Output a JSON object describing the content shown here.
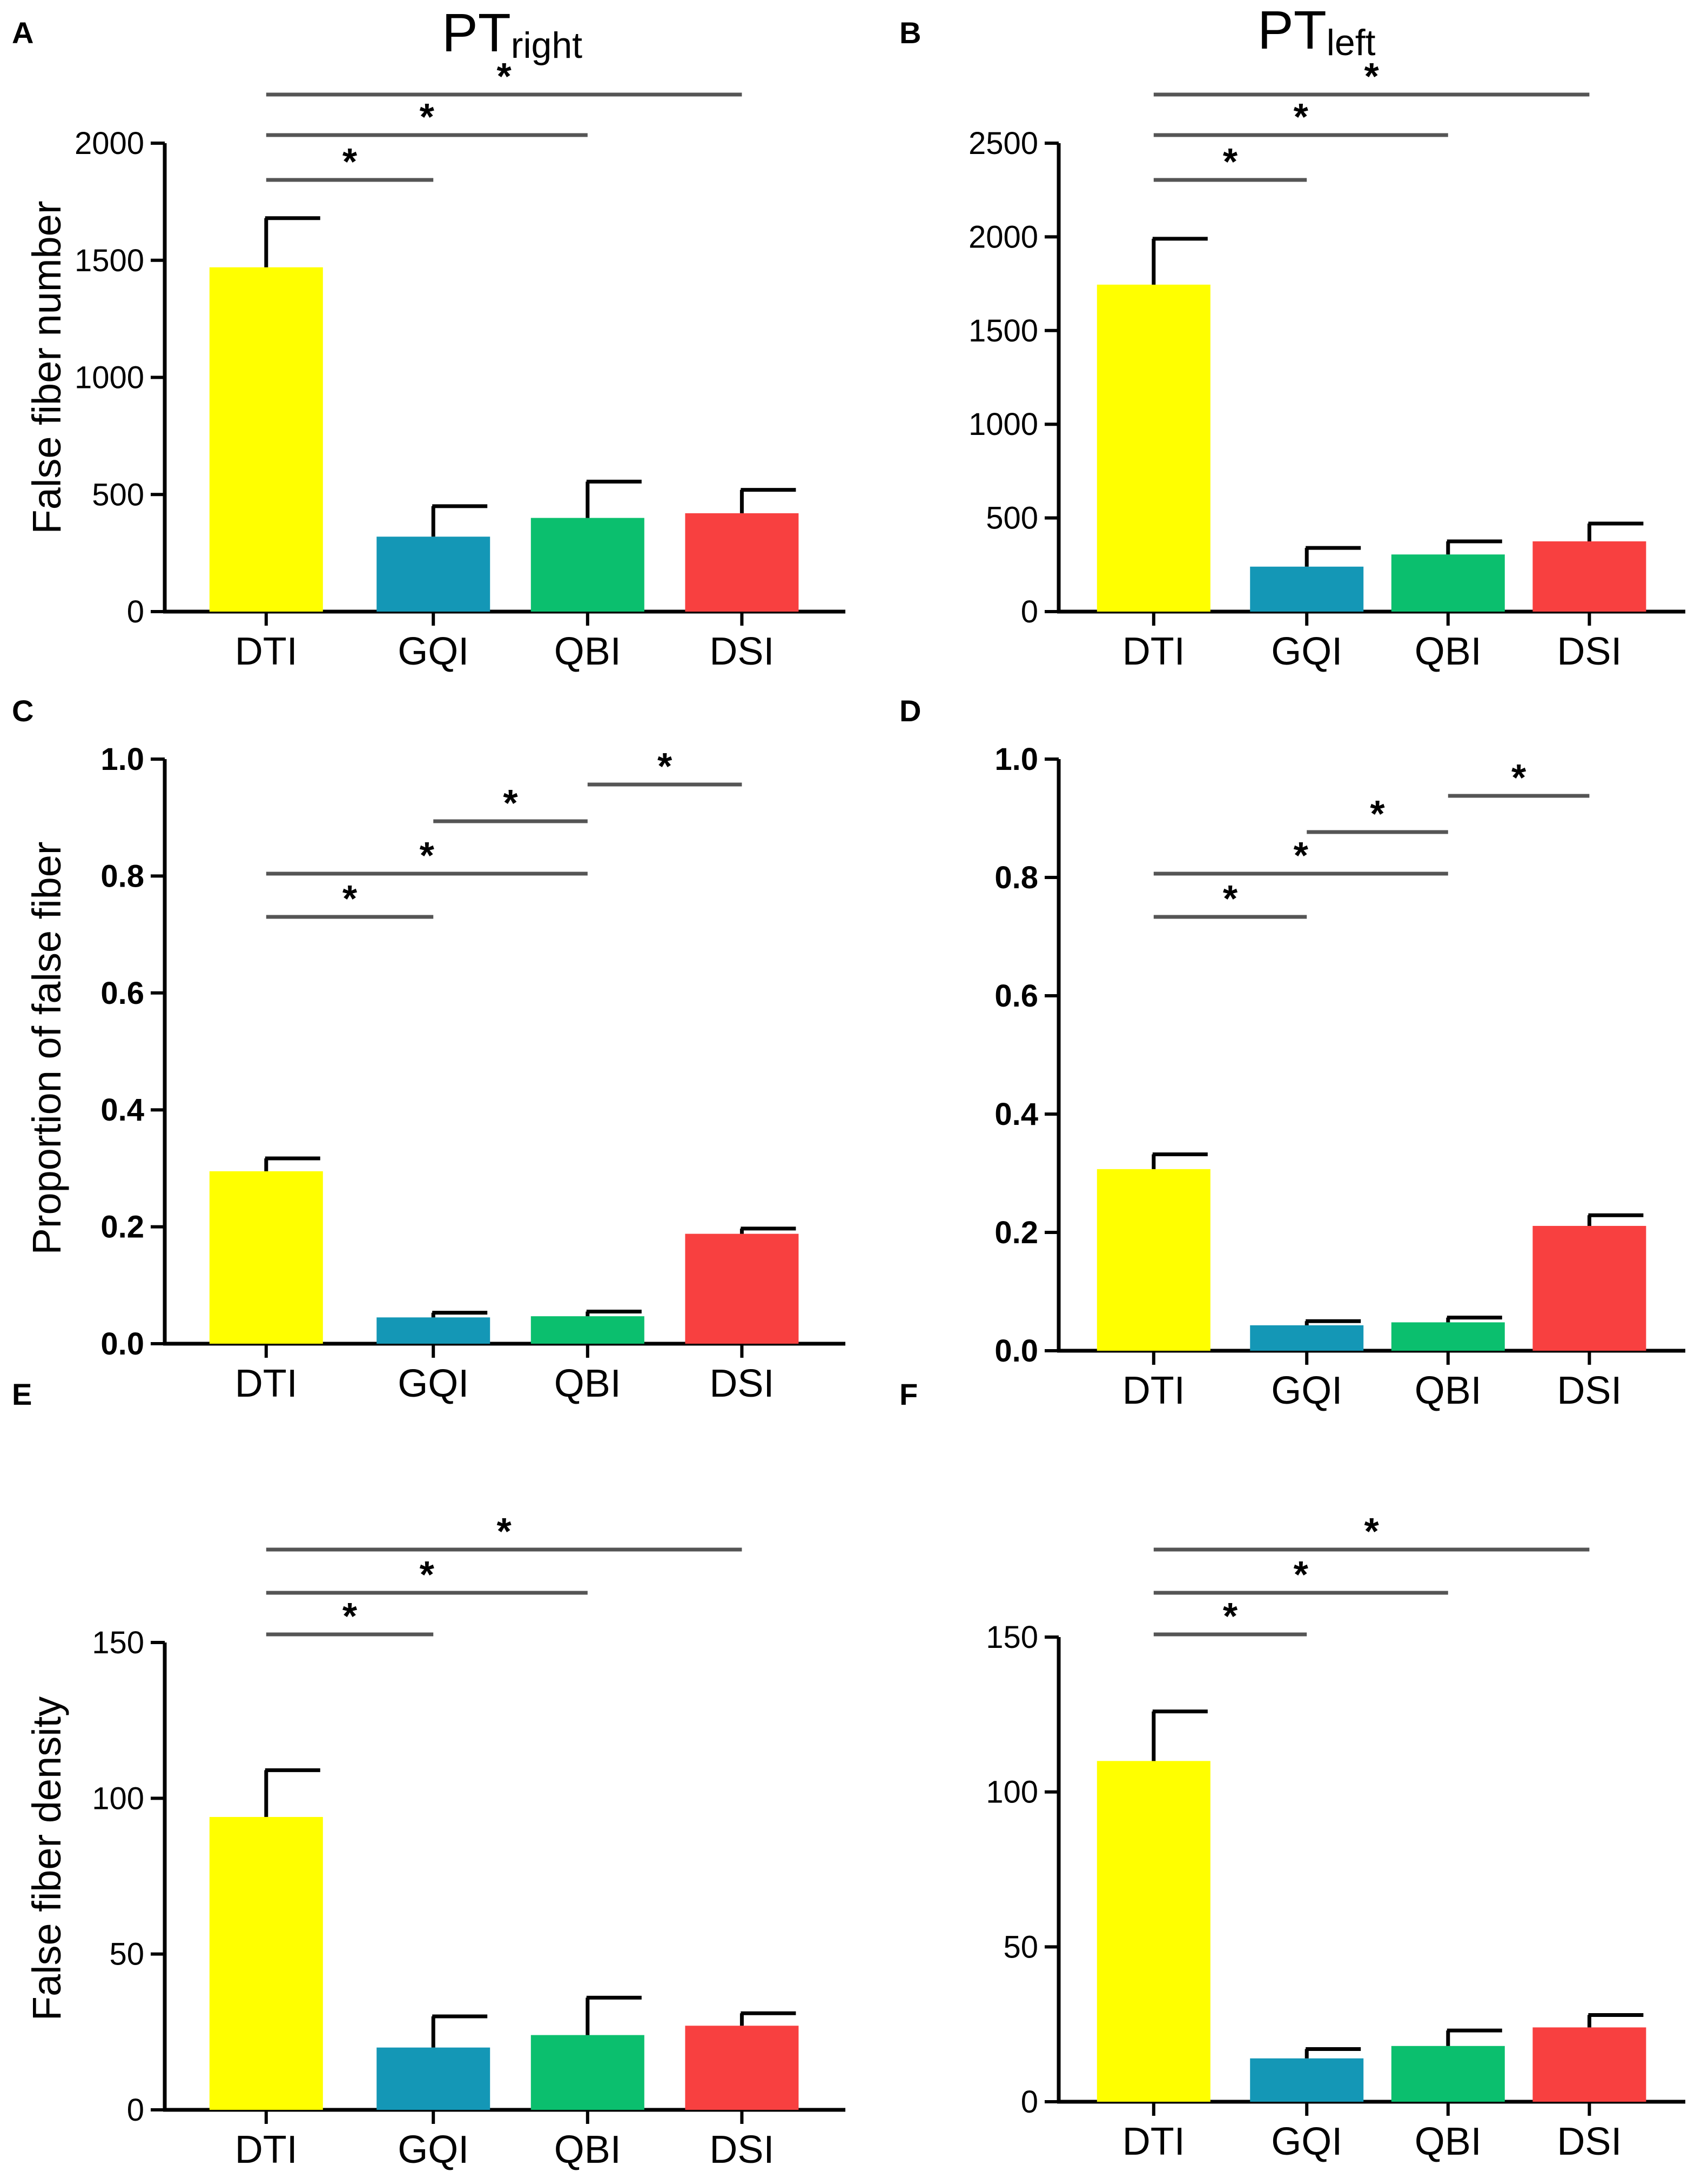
{
  "figure": {
    "title_right": {
      "main": "PT",
      "sub": "right"
    },
    "title_left": {
      "main": "PT",
      "sub": "left"
    }
  },
  "colors": {
    "DTI": "#ffff00",
    "GQI": "#1497b6",
    "QBI": "#0bbf6e",
    "DSI": "#f84040",
    "axis": "#000000",
    "bracket": "#555555"
  },
  "chart_data": [
    {
      "panel": "A",
      "type": "bar",
      "title": "PTright",
      "categories": [
        "DTI",
        "GQI",
        "QBI",
        "DSI"
      ],
      "values": [
        1470,
        320,
        400,
        420
      ],
      "errors": [
        210,
        130,
        155,
        100
      ],
      "ylabel": "False fiber number",
      "ylim": [
        0,
        2000
      ],
      "yticks": [
        0,
        500,
        1000,
        1500,
        2000
      ],
      "significance": [
        {
          "from": "DTI",
          "to": "GQI",
          "label": "*"
        },
        {
          "from": "DTI",
          "to": "QBI",
          "label": "*"
        },
        {
          "from": "DTI",
          "to": "DSI",
          "label": "*"
        }
      ]
    },
    {
      "panel": "B",
      "type": "bar",
      "title": "PTleft",
      "categories": [
        "DTI",
        "GQI",
        "QBI",
        "DSI"
      ],
      "values": [
        1745,
        240,
        305,
        375
      ],
      "errors": [
        245,
        100,
        70,
        95
      ],
      "ylabel": "",
      "ylim": [
        0,
        2500
      ],
      "yticks": [
        0,
        500,
        1000,
        1500,
        2000,
        2500
      ],
      "significance": [
        {
          "from": "DTI",
          "to": "GQI",
          "label": "*"
        },
        {
          "from": "DTI",
          "to": "QBI",
          "label": "*"
        },
        {
          "from": "DTI",
          "to": "DSI",
          "label": "*"
        }
      ]
    },
    {
      "panel": "C",
      "type": "bar",
      "title": "",
      "categories": [
        "DTI",
        "GQI",
        "QBI",
        "DSI"
      ],
      "values": [
        0.295,
        0.045,
        0.047,
        0.188
      ],
      "errors": [
        0.022,
        0.008,
        0.008,
        0.009
      ],
      "ylabel": "Proportion of false fiber",
      "ylim": [
        0,
        1.0
      ],
      "yticks": [
        0.0,
        0.2,
        0.4,
        0.6,
        0.8,
        1.0
      ],
      "significance": [
        {
          "from": "DTI",
          "to": "GQI",
          "label": "*"
        },
        {
          "from": "DTI",
          "to": "QBI",
          "label": "*"
        },
        {
          "from": "GQI",
          "to": "QBI",
          "label": "*"
        },
        {
          "from": "QBI",
          "to": "DSI",
          "label": "*"
        }
      ]
    },
    {
      "panel": "D",
      "type": "bar",
      "title": "",
      "categories": [
        "DTI",
        "GQI",
        "QBI",
        "DSI"
      ],
      "values": [
        0.307,
        0.043,
        0.048,
        0.211
      ],
      "errors": [
        0.025,
        0.007,
        0.008,
        0.018
      ],
      "ylabel": "",
      "ylim": [
        0,
        1.0
      ],
      "yticks": [
        0.0,
        0.2,
        0.4,
        0.6,
        0.8,
        1.0
      ],
      "significance": [
        {
          "from": "DTI",
          "to": "GQI",
          "label": "*"
        },
        {
          "from": "DTI",
          "to": "QBI",
          "label": "*"
        },
        {
          "from": "GQI",
          "to": "QBI",
          "label": "*"
        },
        {
          "from": "QBI",
          "to": "DSI",
          "label": "*"
        }
      ]
    },
    {
      "panel": "E",
      "type": "bar",
      "title": "",
      "categories": [
        "DTI",
        "GQI",
        "QBI",
        "DSI"
      ],
      "values": [
        94,
        20,
        24,
        27
      ],
      "errors": [
        15,
        10,
        12,
        4
      ],
      "ylabel": "False fiber density",
      "ylim": [
        0,
        150
      ],
      "yticks": [
        0,
        50,
        100,
        150
      ],
      "significance": [
        {
          "from": "DTI",
          "to": "GQI",
          "label": "*"
        },
        {
          "from": "DTI",
          "to": "QBI",
          "label": "*"
        },
        {
          "from": "DTI",
          "to": "DSI",
          "label": "*"
        }
      ]
    },
    {
      "panel": "F",
      "type": "bar",
      "title": "",
      "categories": [
        "DTI",
        "GQI",
        "QBI",
        "DSI"
      ],
      "values": [
        110,
        14,
        18,
        24
      ],
      "errors": [
        16,
        3,
        5,
        4
      ],
      "ylabel": "",
      "ylim": [
        0,
        150
      ],
      "yticks": [
        0,
        50,
        100,
        150
      ],
      "significance": [
        {
          "from": "DTI",
          "to": "GQI",
          "label": "*"
        },
        {
          "from": "DTI",
          "to": "QBI",
          "label": "*"
        },
        {
          "from": "DTI",
          "to": "DSI",
          "label": "*"
        }
      ]
    }
  ]
}
